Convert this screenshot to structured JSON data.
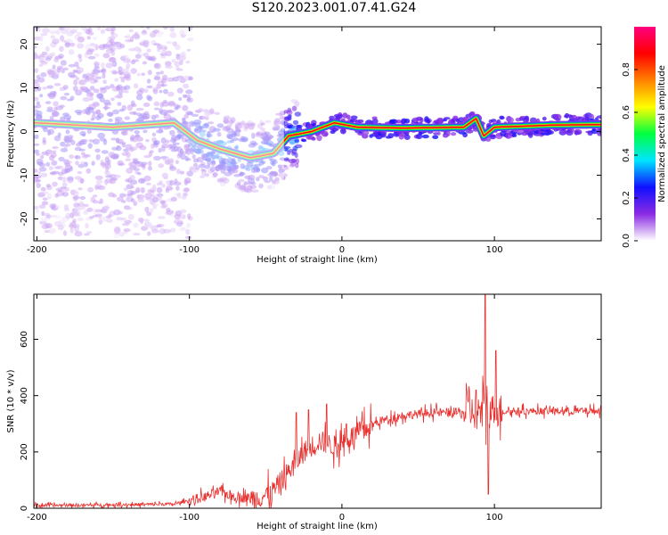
{
  "figure": {
    "title": "S120.2023.001.07.41.G24"
  },
  "chart_data": [
    {
      "type": "heatmap",
      "xlabel": "Height of straight line (km)",
      "ylabel": "Frequency (Hz)",
      "xlim": [
        -202,
        170
      ],
      "ylim": [
        -25,
        24
      ],
      "x_ticks": [
        -200,
        -100,
        0,
        100
      ],
      "y_ticks": [
        -20,
        -10,
        0,
        10,
        20
      ],
      "colorbar": {
        "label": "Normalized spectral amplitude",
        "range": [
          0,
          1
        ],
        "ticks": [
          "0.0",
          "0.2",
          "0.4",
          "0.6",
          "0.8"
        ],
        "colors": [
          "#ffffff",
          "#8a2be2",
          "#1010ff",
          "#00e5ff",
          "#00ff40",
          "#ffff00",
          "#ff8000",
          "#ff0000",
          "#ff007f"
        ]
      },
      "ridge": [
        {
          "x": -200,
          "y": 2
        },
        {
          "x": -150,
          "y": 1
        },
        {
          "x": -110,
          "y": 2
        },
        {
          "x": -95,
          "y": -2
        },
        {
          "x": -80,
          "y": -4
        },
        {
          "x": -60,
          "y": -6
        },
        {
          "x": -45,
          "y": -5
        },
        {
          "x": -35,
          "y": -1
        },
        {
          "x": -20,
          "y": 0
        },
        {
          "x": -5,
          "y": 2
        },
        {
          "x": 10,
          "y": 1
        },
        {
          "x": 40,
          "y": 0.8
        },
        {
          "x": 80,
          "y": 1
        },
        {
          "x": 88,
          "y": 3
        },
        {
          "x": 93,
          "y": -1
        },
        {
          "x": 100,
          "y": 1
        },
        {
          "x": 140,
          "y": 1.5
        },
        {
          "x": 170,
          "y": 1.6
        }
      ]
    },
    {
      "type": "line",
      "xlabel": "Height of straight line (km)",
      "ylabel": "SNR (10 * v/v)",
      "xlim": [
        -202,
        170
      ],
      "ylim": [
        0,
        760
      ],
      "x_ticks": [
        -200,
        -100,
        0,
        100
      ],
      "y_ticks": [
        0,
        200,
        400,
        600
      ],
      "color": "#e8312f",
      "envelope": [
        {
          "x": -202,
          "y": 10
        },
        {
          "x": -150,
          "y": 12
        },
        {
          "x": -110,
          "y": 15
        },
        {
          "x": -90,
          "y": 40
        },
        {
          "x": -80,
          "y": 60
        },
        {
          "x": -70,
          "y": 40
        },
        {
          "x": -55,
          "y": 35
        },
        {
          "x": -45,
          "y": 60
        },
        {
          "x": -35,
          "y": 130
        },
        {
          "x": -25,
          "y": 200
        },
        {
          "x": -15,
          "y": 240
        },
        {
          "x": -5,
          "y": 220
        },
        {
          "x": 5,
          "y": 250
        },
        {
          "x": 15,
          "y": 280
        },
        {
          "x": 25,
          "y": 310
        },
        {
          "x": 40,
          "y": 330
        },
        {
          "x": 60,
          "y": 340
        },
        {
          "x": 80,
          "y": 340
        },
        {
          "x": 100,
          "y": 345
        },
        {
          "x": 130,
          "y": 345
        },
        {
          "x": 170,
          "y": 345
        }
      ],
      "spikes": [
        {
          "x": -30,
          "y": 340
        },
        {
          "x": -22,
          "y": 350
        },
        {
          "x": -10,
          "y": 370
        },
        {
          "x": 3,
          "y": 300
        },
        {
          "x": 88,
          "y": 420
        },
        {
          "x": 94,
          "y": 760
        },
        {
          "x": 96,
          "y": 50
        },
        {
          "x": 101,
          "y": 560
        }
      ]
    }
  ]
}
